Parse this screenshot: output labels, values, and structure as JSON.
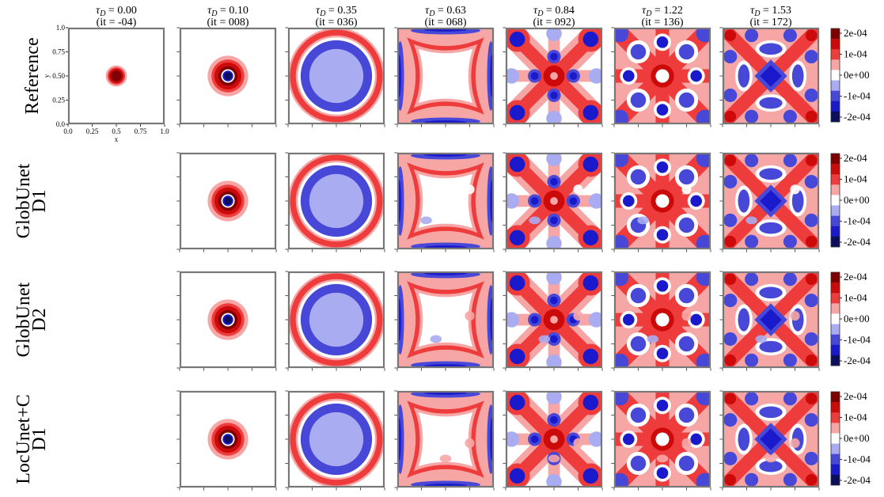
{
  "chart_data": {
    "type": "heatmap",
    "description_kind": "grid of 2D contour fields",
    "columns": [
      {
        "title": "τ_D = 0.00",
        "tau": "0.00",
        "iteration": "(it = -04)"
      },
      {
        "title": "τ_D = 0.10",
        "tau": "0.10",
        "iteration": "(it = 008)"
      },
      {
        "title": "τ_D = 0.35",
        "tau": "0.35",
        "iteration": "(it = 036)"
      },
      {
        "title": "τ_D = 0.63",
        "tau": "0.63",
        "iteration": "(it = 068)"
      },
      {
        "title": "τ_D = 0.84",
        "tau": "0.84",
        "iteration": "(it = 092)"
      },
      {
        "title": "τ_D = 1.22",
        "tau": "1.22",
        "iteration": "(it = 136)"
      },
      {
        "title": "τ_D = 1.53",
        "tau": "1.53",
        "iteration": "(it = 172)"
      }
    ],
    "rows": [
      {
        "label": "Reference",
        "sublabel": ""
      },
      {
        "label": "GlobUnet",
        "sublabel": "D1"
      },
      {
        "label": "GlobUnet",
        "sublabel": "D2"
      },
      {
        "label": "LocUnet+C",
        "sublabel": "D1"
      }
    ],
    "first_panel_axes": {
      "xlabel": "x",
      "ylabel": "y",
      "xticks": [
        "0.0",
        "0.25",
        "0.5",
        "0.75",
        "1.0"
      ],
      "yticks": [
        "0.0",
        "0.25",
        "0.50",
        "0.75",
        "1.0"
      ],
      "xlim": [
        0.0,
        1.0
      ],
      "ylim": [
        0.0,
        1.0
      ]
    },
    "colorbar": {
      "ticks": [
        "2e-04",
        "1e-04",
        "0e+00",
        "-1e-04",
        "-2e-04"
      ],
      "range": [
        -0.0002,
        0.0002
      ],
      "levels": [
        "#0b0f5e",
        "#1a1acc",
        "#4848d8",
        "#a9acf0",
        "#ffffff",
        "#f7a6a6",
        "#ee3c3c",
        "#cc0a0a",
        "#7f0000"
      ]
    }
  }
}
